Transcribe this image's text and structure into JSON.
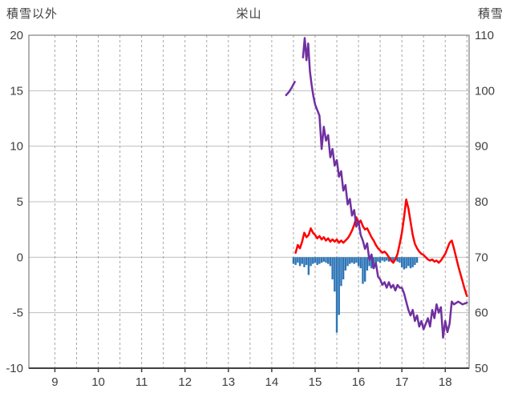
{
  "header": {
    "left_axis_title": "積雪以外",
    "chart_title": "栄山",
    "right_axis_title": "積雪"
  },
  "chart_data": {
    "type": "mixed",
    "title": "栄山",
    "left_axis": {
      "label": "積雪以外",
      "min": -10,
      "max": 20,
      "ticks": [
        20,
        15,
        10,
        5,
        0,
        -5,
        -10
      ]
    },
    "right_axis": {
      "label": "積雪",
      "min": 50,
      "max": 110,
      "ticks": [
        110,
        100,
        90,
        80,
        70,
        60,
        50
      ]
    },
    "x_axis": {
      "min": 8.4,
      "max": 18.55,
      "ticks": [
        9,
        10,
        11,
        12,
        13,
        14,
        15,
        16,
        17,
        18
      ],
      "gridline_start": 9,
      "gridline_end": 18.5,
      "gridline_step": 0.5
    },
    "grid": {
      "horizontal_color": "#bfbfbf",
      "vertical_color": "#a6a6a6",
      "vertical_style": "dashed",
      "border_color": "#7f7f7f",
      "axis_color": "#404040"
    },
    "series": [
      {
        "name": "blue-bars-left-axis",
        "type": "bar",
        "axis": "left",
        "color": "#2e75b6",
        "points": [
          [
            14.5,
            -0.6
          ],
          [
            14.55,
            -0.7
          ],
          [
            14.6,
            -0.5
          ],
          [
            14.65,
            -0.8
          ],
          [
            14.7,
            -0.6
          ],
          [
            14.75,
            -0.9
          ],
          [
            14.8,
            -0.7
          ],
          [
            14.85,
            -1.6
          ],
          [
            14.9,
            -0.8
          ],
          [
            14.95,
            -0.6
          ],
          [
            15.0,
            -0.5
          ],
          [
            15.05,
            -0.7
          ],
          [
            15.1,
            -0.6
          ],
          [
            15.15,
            -0.5
          ],
          [
            15.2,
            -0.4
          ],
          [
            15.25,
            -0.5
          ],
          [
            15.3,
            -0.6
          ],
          [
            15.35,
            -0.8
          ],
          [
            15.4,
            -2.0
          ],
          [
            15.45,
            -3.1
          ],
          [
            15.5,
            -6.8
          ],
          [
            15.55,
            -5.2
          ],
          [
            15.6,
            -2.6
          ],
          [
            15.65,
            -2.0
          ],
          [
            15.7,
            -1.2
          ],
          [
            15.75,
            -0.8
          ],
          [
            15.8,
            -0.6
          ],
          [
            15.85,
            -0.5
          ],
          [
            15.9,
            -0.6
          ],
          [
            15.95,
            -0.5
          ],
          [
            16.0,
            -0.8
          ],
          [
            16.05,
            -1.0
          ],
          [
            16.1,
            -2.4
          ],
          [
            16.15,
            -2.2
          ],
          [
            16.2,
            -1.2
          ],
          [
            16.25,
            -0.8
          ],
          [
            16.3,
            -1.0
          ],
          [
            16.35,
            -0.6
          ],
          [
            16.4,
            -0.5
          ],
          [
            16.45,
            -0.4
          ],
          [
            16.5,
            -0.5
          ],
          [
            16.55,
            -0.3
          ],
          [
            16.6,
            -0.4
          ],
          [
            16.65,
            -0.3
          ],
          [
            16.7,
            -0.4
          ],
          [
            16.75,
            -0.3
          ],
          [
            16.8,
            -0.4
          ],
          [
            16.85,
            -0.3
          ],
          [
            16.9,
            -0.4
          ],
          [
            16.95,
            -0.5
          ],
          [
            17.0,
            -0.9
          ],
          [
            17.05,
            -1.1
          ],
          [
            17.1,
            -1.0
          ],
          [
            17.15,
            -0.8
          ],
          [
            17.2,
            -1.0
          ],
          [
            17.25,
            -0.9
          ],
          [
            17.3,
            -0.7
          ],
          [
            17.35,
            -0.5
          ]
        ]
      },
      {
        "name": "red-line-left-axis",
        "type": "line",
        "axis": "left",
        "color": "#ff0000",
        "points": [
          [
            14.55,
            0.4
          ],
          [
            14.6,
            1.1
          ],
          [
            14.65,
            0.8
          ],
          [
            14.7,
            1.4
          ],
          [
            14.75,
            2.2
          ],
          [
            14.8,
            1.8
          ],
          [
            14.85,
            2.0
          ],
          [
            14.9,
            2.6
          ],
          [
            14.95,
            2.2
          ],
          [
            15.0,
            2.0
          ],
          [
            15.05,
            1.7
          ],
          [
            15.1,
            1.9
          ],
          [
            15.15,
            1.6
          ],
          [
            15.2,
            1.8
          ],
          [
            15.25,
            1.5
          ],
          [
            15.3,
            1.7
          ],
          [
            15.35,
            1.4
          ],
          [
            15.4,
            1.6
          ],
          [
            15.45,
            1.4
          ],
          [
            15.5,
            1.6
          ],
          [
            15.55,
            1.3
          ],
          [
            15.6,
            1.5
          ],
          [
            15.65,
            1.3
          ],
          [
            15.7,
            1.5
          ],
          [
            15.75,
            1.7
          ],
          [
            15.8,
            2.0
          ],
          [
            15.85,
            2.4
          ],
          [
            15.9,
            2.9
          ],
          [
            15.95,
            3.6
          ],
          [
            16.0,
            3.0
          ],
          [
            16.05,
            3.3
          ],
          [
            16.1,
            2.8
          ],
          [
            16.15,
            2.5
          ],
          [
            16.2,
            2.6
          ],
          [
            16.25,
            2.2
          ],
          [
            16.3,
            1.8
          ],
          [
            16.35,
            1.5
          ],
          [
            16.4,
            1.1
          ],
          [
            16.45,
            0.8
          ],
          [
            16.5,
            0.6
          ],
          [
            16.55,
            0.4
          ],
          [
            16.6,
            0.5
          ],
          [
            16.65,
            0.3
          ],
          [
            16.7,
            0.0
          ],
          [
            16.75,
            -0.3
          ],
          [
            16.8,
            -0.5
          ],
          [
            16.85,
            -0.2
          ],
          [
            16.9,
            0.3
          ],
          [
            16.95,
            1.2
          ],
          [
            17.0,
            2.2
          ],
          [
            17.05,
            3.6
          ],
          [
            17.1,
            5.2
          ],
          [
            17.15,
            4.4
          ],
          [
            17.2,
            3.2
          ],
          [
            17.25,
            2.0
          ],
          [
            17.3,
            1.2
          ],
          [
            17.35,
            0.8
          ],
          [
            17.4,
            0.5
          ],
          [
            17.45,
            0.3
          ],
          [
            17.5,
            0.2
          ],
          [
            17.55,
            0.0
          ],
          [
            17.6,
            -0.2
          ],
          [
            17.65,
            -0.3
          ],
          [
            17.7,
            -0.2
          ],
          [
            17.75,
            -0.4
          ],
          [
            17.8,
            -0.3
          ],
          [
            17.85,
            -0.5
          ],
          [
            17.9,
            -0.3
          ],
          [
            17.95,
            0.0
          ],
          [
            18.0,
            0.3
          ],
          [
            18.05,
            0.8
          ],
          [
            18.1,
            1.3
          ],
          [
            18.15,
            1.5
          ],
          [
            18.2,
            0.8
          ],
          [
            18.25,
            0.0
          ],
          [
            18.3,
            -0.8
          ],
          [
            18.35,
            -1.5
          ],
          [
            18.4,
            -2.2
          ],
          [
            18.45,
            -2.9
          ],
          [
            18.5,
            -3.5
          ]
        ]
      },
      {
        "name": "purple-line-right-axis",
        "type": "line",
        "axis": "right",
        "color": "#7030a0",
        "segments": [
          [
            [
              14.33,
              99.2
            ],
            [
              14.4,
              99.8
            ],
            [
              14.47,
              100.7
            ],
            [
              14.53,
              101.6
            ]
          ],
          [
            [
              14.72,
              106.0
            ],
            [
              14.76,
              109.5
            ],
            [
              14.8,
              105.5
            ],
            [
              14.84,
              108.5
            ],
            [
              14.88,
              103.5
            ],
            [
              14.92,
              101.0
            ],
            [
              14.96,
              99.0
            ],
            [
              15.0,
              97.5
            ],
            [
              15.05,
              96.5
            ],
            [
              15.1,
              95.5
            ],
            [
              15.15,
              89.5
            ],
            [
              15.2,
              93.5
            ],
            [
              15.25,
              91.0
            ],
            [
              15.3,
              92.0
            ],
            [
              15.35,
              88.0
            ],
            [
              15.4,
              89.5
            ],
            [
              15.45,
              86.5
            ],
            [
              15.5,
              87.5
            ],
            [
              15.55,
              84.5
            ],
            [
              15.6,
              85.5
            ],
            [
              15.65,
              82.0
            ],
            [
              15.7,
              83.0
            ],
            [
              15.75,
              79.5
            ],
            [
              15.8,
              80.5
            ],
            [
              15.85,
              77.5
            ],
            [
              15.9,
              78.5
            ],
            [
              15.95,
              75.5
            ],
            [
              16.0,
              76.5
            ],
            [
              16.05,
              74.0
            ],
            [
              16.1,
              73.0
            ],
            [
              16.15,
              71.5
            ],
            [
              16.2,
              72.5
            ],
            [
              16.25,
              69.5
            ],
            [
              16.3,
              70.5
            ],
            [
              16.35,
              68.0
            ],
            [
              16.4,
              69.0
            ],
            [
              16.45,
              66.5
            ],
            [
              16.5,
              66.0
            ],
            [
              16.55,
              65.0
            ],
            [
              16.6,
              65.5
            ],
            [
              16.65,
              64.5
            ],
            [
              16.7,
              65.5
            ],
            [
              16.75,
              64.5
            ],
            [
              16.8,
              65.0
            ],
            [
              16.85,
              64.0
            ],
            [
              16.9,
              65.0
            ],
            [
              16.95,
              64.5
            ],
            [
              17.0,
              64.5
            ],
            [
              17.05,
              63.5
            ],
            [
              17.1,
              62.0
            ],
            [
              17.15,
              60.5
            ],
            [
              17.2,
              59.5
            ],
            [
              17.25,
              60.5
            ],
            [
              17.3,
              58.5
            ],
            [
              17.35,
              59.5
            ],
            [
              17.4,
              57.5
            ],
            [
              17.45,
              58.5
            ],
            [
              17.5,
              57.0
            ],
            [
              17.55,
              58.0
            ],
            [
              17.6,
              59.0
            ],
            [
              17.65,
              57.5
            ],
            [
              17.7,
              60.5
            ],
            [
              17.75,
              59.0
            ],
            [
              17.8,
              61.5
            ],
            [
              17.85,
              60.0
            ],
            [
              17.9,
              61.0
            ],
            [
              17.95,
              55.5
            ],
            [
              18.0,
              58.5
            ],
            [
              18.05,
              56.5
            ],
            [
              18.1,
              58.0
            ],
            [
              18.15,
              62.0
            ],
            [
              18.2,
              61.5
            ],
            [
              18.3,
              62.0
            ],
            [
              18.4,
              61.5
            ],
            [
              18.5,
              61.8
            ]
          ]
        ]
      }
    ]
  }
}
